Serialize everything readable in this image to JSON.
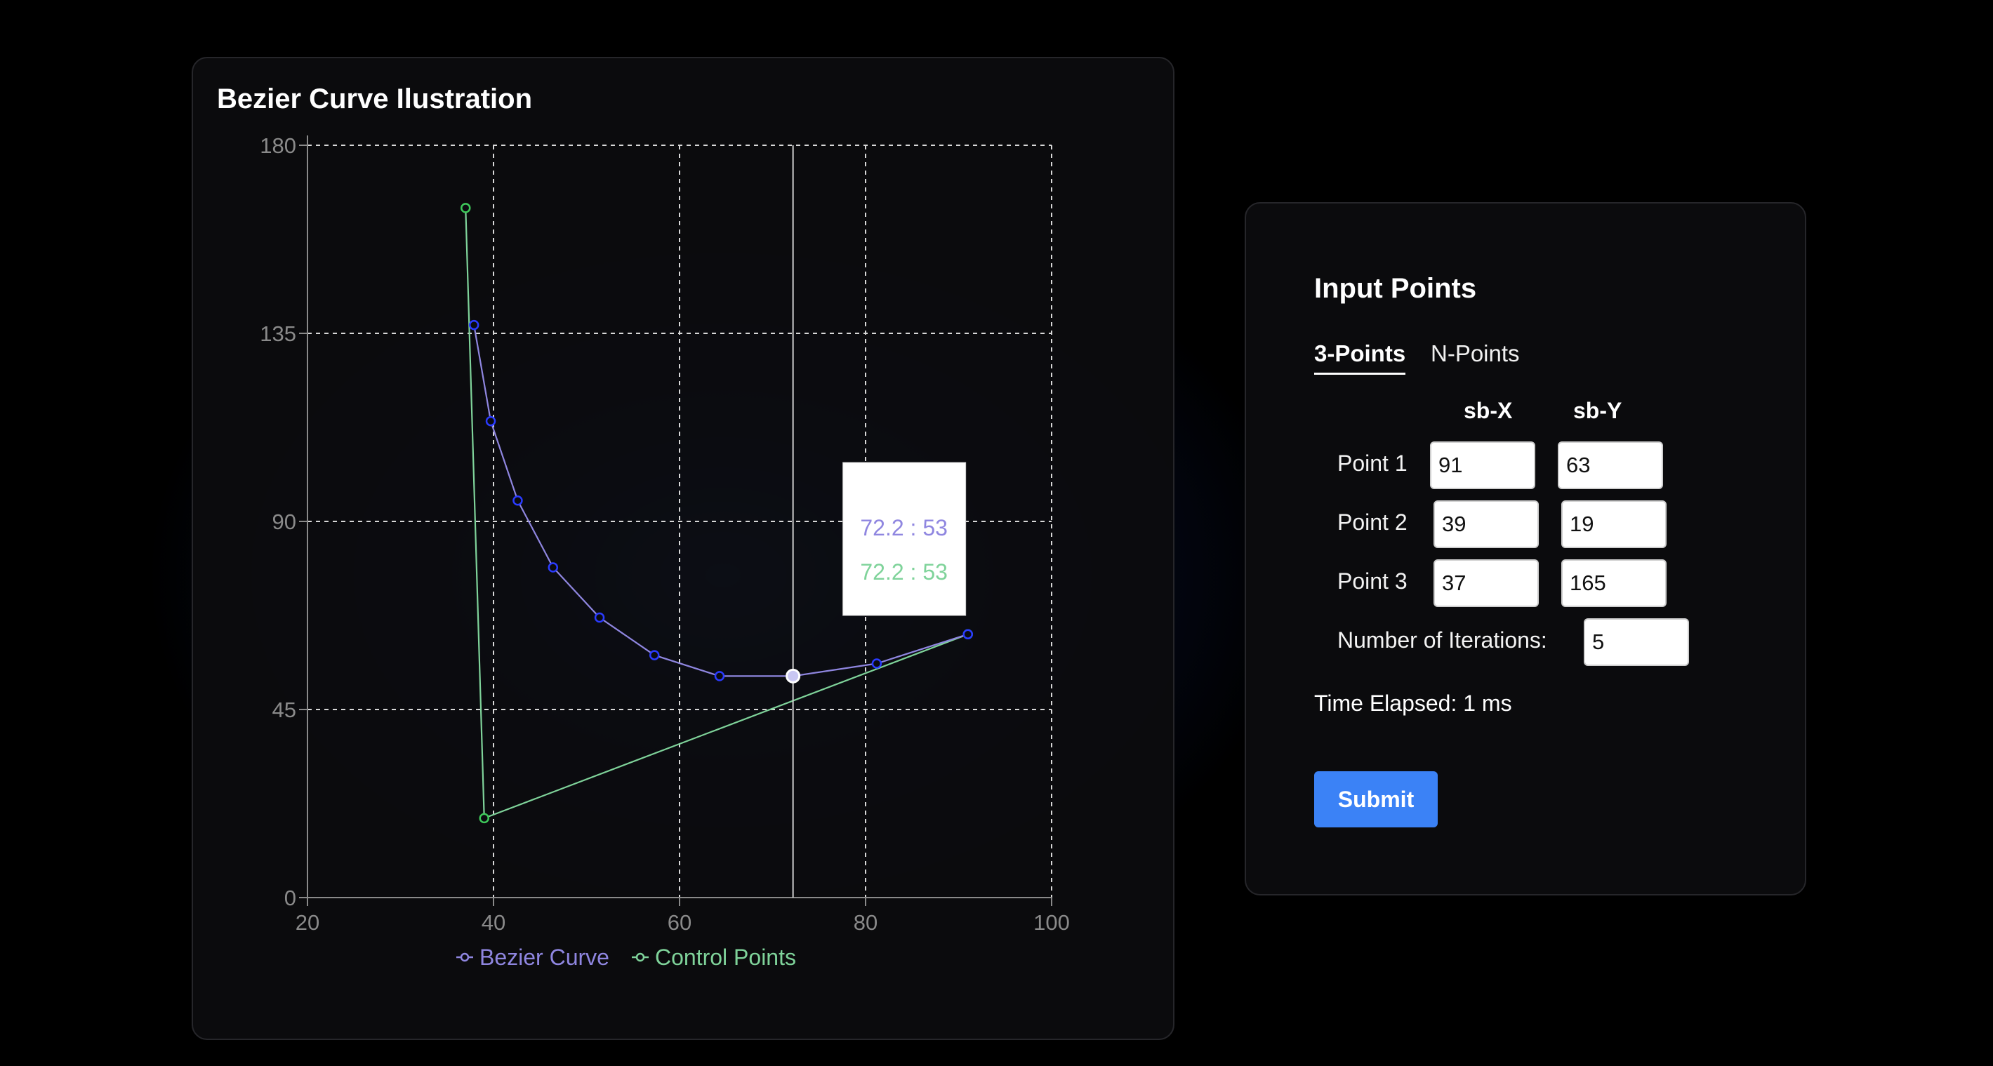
{
  "chart_card": {
    "title": "Bezier Curve Ilustration"
  },
  "chart_data": {
    "type": "line",
    "title": "Bezier Curve Ilustration",
    "xlim": [
      20,
      100
    ],
    "ylim": [
      0,
      180
    ],
    "x_ticks": [
      "20",
      "40",
      "60",
      "80",
      "100"
    ],
    "y_ticks": [
      "0",
      "45",
      "90",
      "135",
      "180"
    ],
    "grid": true,
    "legend_position": "bottom",
    "series": [
      {
        "name": "Bezier Curve",
        "color": "#8f86e0",
        "marker_color": "#2a3bff",
        "points": [
          [
            37.9,
            137
          ],
          [
            39.7,
            114
          ],
          [
            42.6,
            95
          ],
          [
            46.4,
            79
          ],
          [
            51.4,
            67
          ],
          [
            57.3,
            58
          ],
          [
            64.3,
            53
          ],
          [
            72.2,
            53
          ],
          [
            81.2,
            56
          ],
          [
            91,
            63
          ]
        ]
      },
      {
        "name": "Control Points",
        "color": "#7fd39a",
        "marker_color": "#3ec85a",
        "points": [
          [
            37,
            165
          ],
          [
            39,
            19
          ],
          [
            91,
            63
          ]
        ]
      }
    ],
    "hover": {
      "x": 72.2,
      "y": 53,
      "labels": [
        "72.2 : 53",
        "72.2 : 53"
      ]
    }
  },
  "input_card": {
    "title": "Input Points",
    "tabs": [
      {
        "label": "3-Points",
        "active": true
      },
      {
        "label": "N-Points",
        "active": false
      }
    ],
    "columns": [
      "sb-X",
      "sb-Y"
    ],
    "points": [
      {
        "label": "Point 1",
        "x": "91",
        "y": "63"
      },
      {
        "label": "Point 2",
        "x": "39",
        "y": "19"
      },
      {
        "label": "Point 3",
        "x": "37",
        "y": "165"
      }
    ],
    "iterations_label": "Number of Iterations:",
    "iterations_value": "5",
    "time_elapsed": "Time Elapsed: 1 ms",
    "submit_label": "Submit"
  }
}
